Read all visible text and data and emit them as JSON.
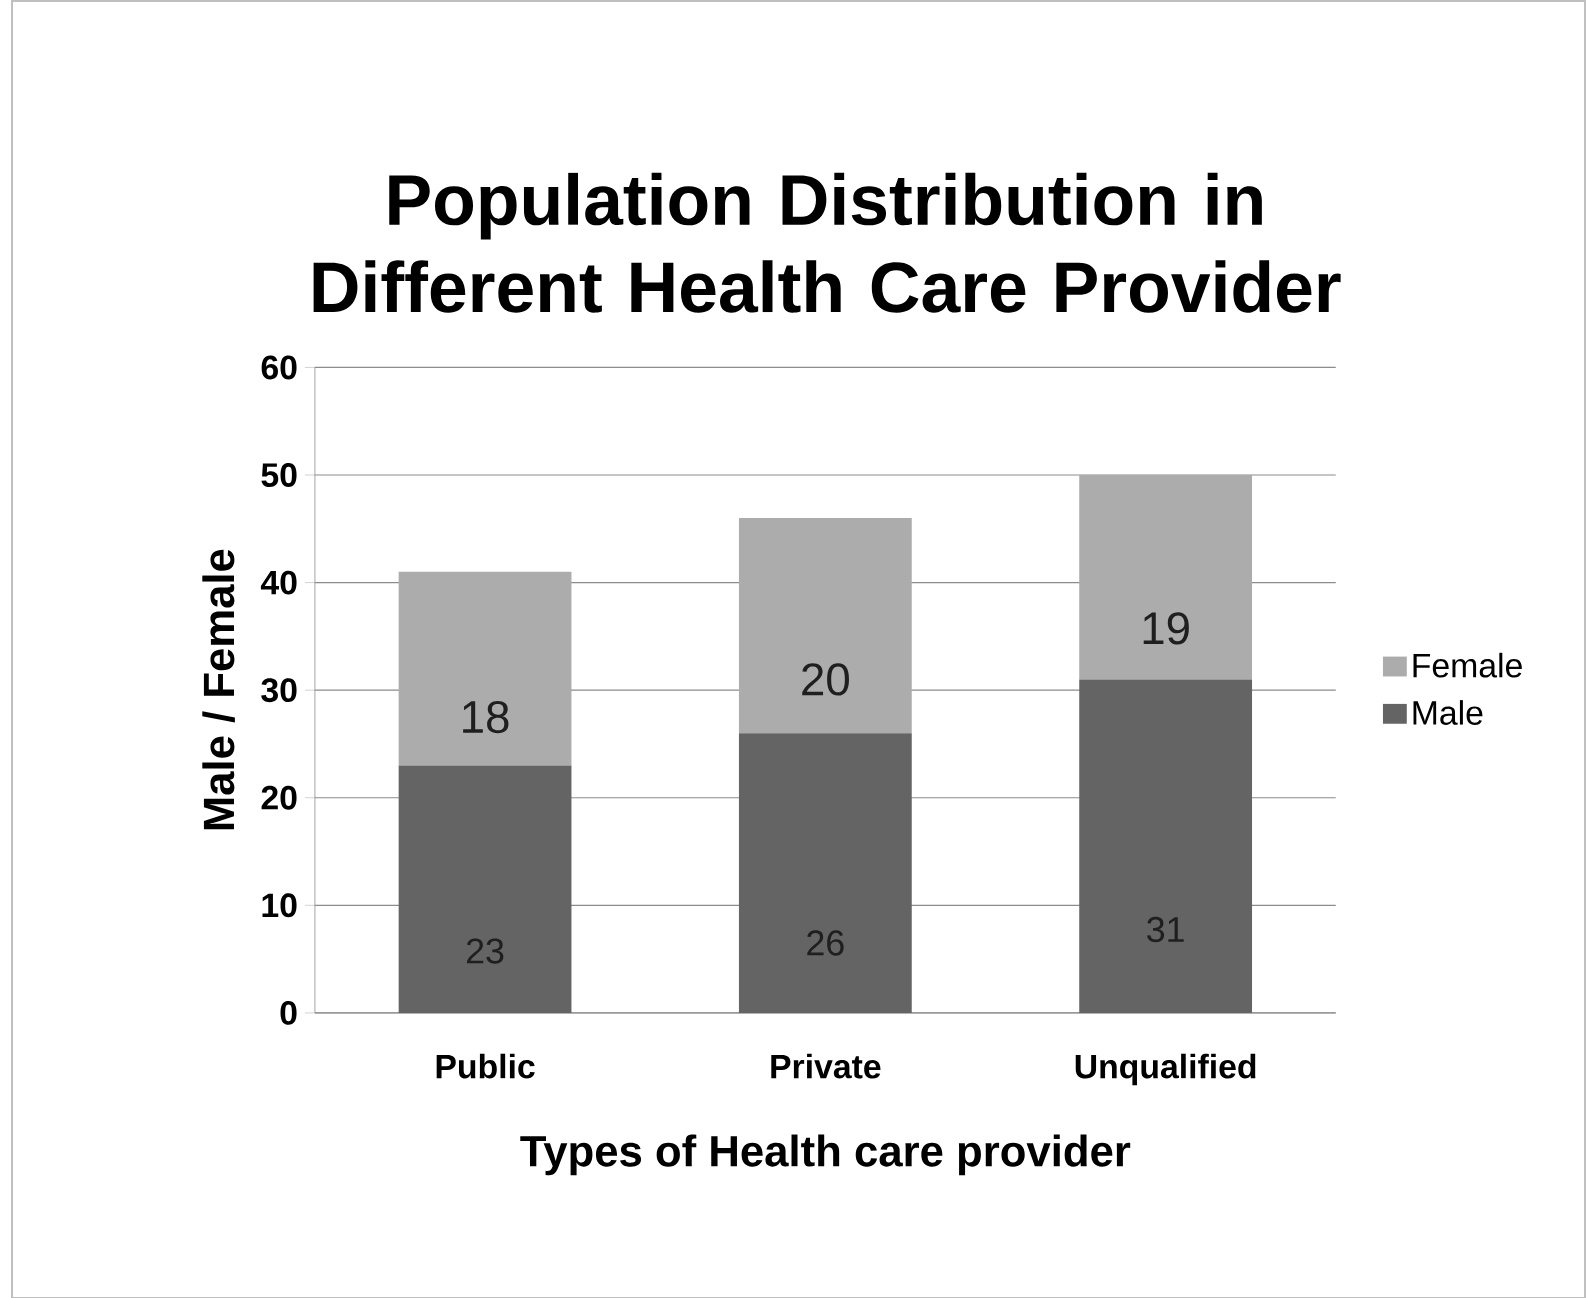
{
  "chart_data": {
    "type": "bar",
    "stacked": true,
    "title": "Population Distribution in Different Health Care Provider",
    "xlabel": "Types of Health care provider",
    "ylabel": "Male / Female",
    "categories": [
      "Public",
      "Private",
      "Unqualified"
    ],
    "series": [
      {
        "name": "Male",
        "color": "#646464",
        "values": [
          23,
          26,
          31
        ]
      },
      {
        "name": "Female",
        "color": "#acacac",
        "values": [
          18,
          20,
          19
        ]
      }
    ],
    "ylim": [
      0,
      60
    ],
    "yticks": [
      0,
      10,
      20,
      30,
      40,
      50,
      60
    ],
    "grid": "y",
    "legend": "right",
    "data_labels": true
  }
}
